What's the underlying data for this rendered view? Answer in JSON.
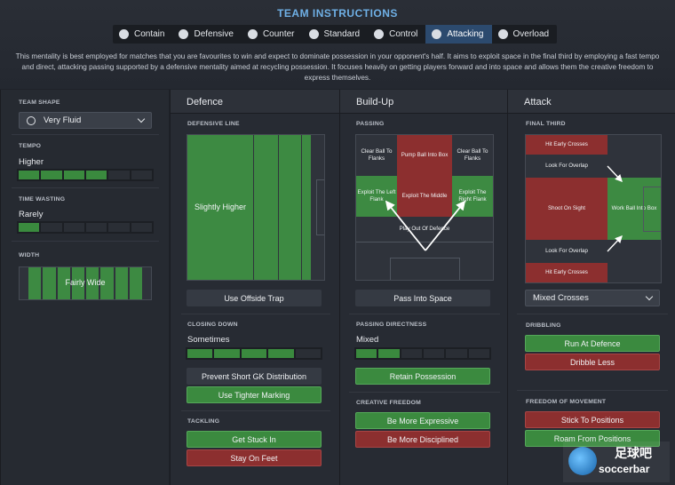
{
  "header": {
    "title": "TEAM INSTRUCTIONS",
    "tabs": [
      {
        "label": "Contain",
        "icon": "contain-icon"
      },
      {
        "label": "Defensive",
        "icon": "shield-icon"
      },
      {
        "label": "Counter",
        "icon": "counter-icon"
      },
      {
        "label": "Standard",
        "icon": "standard-icon"
      },
      {
        "label": "Control",
        "icon": "control-icon"
      },
      {
        "label": "Attacking",
        "icon": "attacking-icon",
        "active": true
      },
      {
        "label": "Overload",
        "icon": "overload-icon"
      }
    ],
    "description": "This mentality is best employed for matches that you are favourites to win and expect to dominate possession in your opponent's half. It aims to exploit space in the final third by employing a fast tempo and direct, attacking passing supported by a defensive mentality aimed at recycling possession. It focuses heavily on getting players forward and into space and allows them the creative freedom to express themselves."
  },
  "team_shape": {
    "label": "TEAM SHAPE",
    "value": "Very Fluid",
    "tempo": {
      "label": "TEMPO",
      "value": "Higher",
      "level": 4,
      "segments": 6
    },
    "time_wasting": {
      "label": "TIME WASTING",
      "value": "Rarely",
      "level": 1,
      "segments": 6
    },
    "width": {
      "label": "WIDTH",
      "value": "Fairly Wide"
    }
  },
  "defence": {
    "title": "Defence",
    "defensive_line": {
      "label": "DEFENSIVE LINE",
      "value": "Slightly Higher"
    },
    "offside_trap": "Use Offside Trap",
    "closing_down": {
      "label": "CLOSING DOWN",
      "value": "Sometimes",
      "level": 4,
      "segments": 5
    },
    "gk_distribution": "Prevent Short GK Distribution",
    "tighter_marking": "Use Tighter Marking",
    "tackling": {
      "label": "TACKLING",
      "get_stuck_in": "Get Stuck In",
      "stay_on_feet": "Stay On Feet"
    }
  },
  "buildup": {
    "title": "Build-Up",
    "passing": {
      "label": "PASSING",
      "zones": {
        "clear_left": "Clear Ball To Flanks",
        "pump": "Pump Ball Into Box",
        "clear_right": "Clear Ball To Flanks",
        "exploit_left": "Exploit The Left Flank",
        "exploit_middle": "Exploit The Middle",
        "exploit_right": "Exploit The Right Flank",
        "play_out": "Play Out Of Defence"
      }
    },
    "pass_into_space": "Pass Into Space",
    "directness": {
      "label": "PASSING DIRECTNESS",
      "value": "Mixed",
      "level": 2,
      "segments": 6
    },
    "retain_possession": "Retain Possession",
    "creative": {
      "label": "CREATIVE FREEDOM",
      "expressive": "Be More Expressive",
      "disciplined": "Be More Disciplined"
    }
  },
  "attack": {
    "title": "Attack",
    "final_third": {
      "label": "FINAL THIRD",
      "zones": {
        "early_top": "Hit Early Crosses",
        "overlap_top": "Look For Overlap",
        "shoot": "Shoot On Sight",
        "work_ball": "Work Ball Into Box",
        "overlap_bottom": "Look For Overlap",
        "early_bottom": "Hit Early Crosses"
      }
    },
    "crosses": "Mixed Crosses",
    "dribbling": {
      "label": "DRIBBLING",
      "run_at": "Run At Defence",
      "dribble_less": "Dribble Less"
    },
    "movement": {
      "label": "FREEDOM OF MOVEMENT",
      "stick": "Stick To Positions",
      "roam": "Roam From Positions"
    }
  },
  "watermark": {
    "text_cn": "足球吧",
    "text_en": "soccerbar"
  }
}
